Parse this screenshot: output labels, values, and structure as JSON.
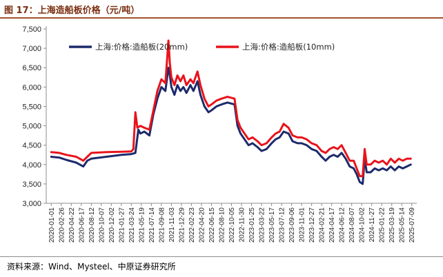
{
  "figure": {
    "title": "图 17：上海造船板价格（元/吨）",
    "source": "资料来源：Wind、Mysteel、中原证券研究所"
  },
  "colors": {
    "series1": "#1c2a6b",
    "series2": "#e8131b",
    "axis": "#8c8c8c",
    "title": "#7a2e10"
  },
  "chart_data": {
    "type": "line",
    "title": "",
    "xlabel": "",
    "ylabel": "元/吨",
    "ylim": [
      3000,
      7500
    ],
    "yticks": [
      3000,
      3500,
      4000,
      4500,
      5000,
      5500,
      6000,
      6500,
      7000,
      7500
    ],
    "ytick_labels": [
      "3,000",
      "3,500",
      "4,000",
      "4,500",
      "5,000",
      "5,500",
      "6,000",
      "6,500",
      "7,000",
      "7,500"
    ],
    "xtick_labels": [
      "2020-01-01",
      "2020-02-26",
      "2020-04-22",
      "2020-06-17",
      "2020-08-12",
      "2020-10-07",
      "2020-12-02",
      "2021-01-27",
      "2021-03-24",
      "2021-05-19",
      "2021-07-14",
      "2021-09-08",
      "2021-11-03",
      "2021-12-29",
      "2022-02-23",
      "2022-04-20",
      "2022-06-15",
      "2022-08-10",
      "2022-10-05",
      "2022-11-30",
      "2023-01-25",
      "2023-03-22",
      "2023-05-17",
      "2023-07-12",
      "2023-09-06",
      "2023-11-01",
      "2023-12-27",
      "2024-02-21",
      "2024-04-17",
      "2024-06-12",
      "2024-08-07",
      "2024-10-02",
      "2024-11-27",
      "2025-01-22",
      "2025-03-19",
      "2025-05-14",
      "2025-07-09"
    ],
    "legend_position": "top",
    "series": [
      {
        "name": "上海:价格:造船板(20mm)",
        "points": [
          [
            0,
            4200
          ],
          [
            0.8,
            4180
          ],
          [
            1.5,
            4120
          ],
          [
            2.5,
            4050
          ],
          [
            3.2,
            3950
          ],
          [
            3.6,
            4100
          ],
          [
            4.0,
            4150
          ],
          [
            5.5,
            4200
          ],
          [
            7.0,
            4250
          ],
          [
            8.0,
            4270
          ],
          [
            8.4,
            4300
          ],
          [
            8.7,
            4900
          ],
          [
            8.9,
            4800
          ],
          [
            9.3,
            4850
          ],
          [
            9.8,
            4750
          ],
          [
            10.2,
            5300
          ],
          [
            10.6,
            5700
          ],
          [
            11.0,
            6000
          ],
          [
            11.4,
            5900
          ],
          [
            11.7,
            6500
          ],
          [
            11.85,
            6300
          ],
          [
            12.0,
            6000
          ],
          [
            12.3,
            5800
          ],
          [
            12.6,
            6050
          ],
          [
            12.9,
            5900
          ],
          [
            13.2,
            6000
          ],
          [
            13.5,
            5850
          ],
          [
            13.9,
            6050
          ],
          [
            14.2,
            5900
          ],
          [
            14.6,
            6150
          ],
          [
            14.9,
            5800
          ],
          [
            15.3,
            5500
          ],
          [
            15.7,
            5350
          ],
          [
            16.0,
            5400
          ],
          [
            16.5,
            5500
          ],
          [
            17.0,
            5550
          ],
          [
            17.6,
            5600
          ],
          [
            18.3,
            5550
          ],
          [
            18.6,
            5000
          ],
          [
            18.9,
            4800
          ],
          [
            19.3,
            4650
          ],
          [
            19.7,
            4500
          ],
          [
            20.1,
            4550
          ],
          [
            20.6,
            4450
          ],
          [
            21.0,
            4350
          ],
          [
            21.5,
            4400
          ],
          [
            22.0,
            4550
          ],
          [
            22.4,
            4650
          ],
          [
            22.8,
            4700
          ],
          [
            23.2,
            4850
          ],
          [
            23.7,
            4800
          ],
          [
            24.1,
            4600
          ],
          [
            24.6,
            4550
          ],
          [
            25.0,
            4550
          ],
          [
            25.5,
            4500
          ],
          [
            26.0,
            4400
          ],
          [
            26.5,
            4350
          ],
          [
            27.0,
            4200
          ],
          [
            27.4,
            4100
          ],
          [
            27.8,
            4200
          ],
          [
            28.2,
            4250
          ],
          [
            28.6,
            4200
          ],
          [
            29.0,
            4300
          ],
          [
            29.4,
            4150
          ],
          [
            29.8,
            3950
          ],
          [
            30.2,
            3900
          ],
          [
            30.5,
            3750
          ],
          [
            30.8,
            3550
          ],
          [
            31.1,
            3500
          ],
          [
            31.3,
            4150
          ],
          [
            31.5,
            3800
          ],
          [
            31.9,
            3800
          ],
          [
            32.3,
            3900
          ],
          [
            32.7,
            3850
          ],
          [
            33.1,
            3900
          ],
          [
            33.5,
            3850
          ],
          [
            33.9,
            3950
          ],
          [
            34.3,
            3850
          ],
          [
            34.7,
            3950
          ],
          [
            35.1,
            3900
          ],
          [
            35.5,
            3950
          ],
          [
            35.9,
            4000
          ]
        ]
      },
      {
        "name": "上海:价格:造船板(10mm)",
        "points": [
          [
            0,
            4320
          ],
          [
            0.8,
            4300
          ],
          [
            1.5,
            4250
          ],
          [
            2.5,
            4200
          ],
          [
            3.2,
            4100
          ],
          [
            3.6,
            4200
          ],
          [
            4.0,
            4300
          ],
          [
            5.5,
            4320
          ],
          [
            7.0,
            4330
          ],
          [
            8.0,
            4340
          ],
          [
            8.2,
            4400
          ],
          [
            8.4,
            5350
          ],
          [
            8.6,
            4950
          ],
          [
            8.9,
            5000
          ],
          [
            9.3,
            4950
          ],
          [
            9.8,
            4900
          ],
          [
            10.2,
            5400
          ],
          [
            10.6,
            5900
          ],
          [
            11.0,
            6200
          ],
          [
            11.4,
            6100
          ],
          [
            11.7,
            7200
          ],
          [
            11.85,
            6600
          ],
          [
            12.0,
            6250
          ],
          [
            12.3,
            6050
          ],
          [
            12.6,
            6300
          ],
          [
            12.9,
            6150
          ],
          [
            13.2,
            6300
          ],
          [
            13.5,
            6050
          ],
          [
            13.9,
            6200
          ],
          [
            14.2,
            6100
          ],
          [
            14.6,
            6400
          ],
          [
            14.9,
            6050
          ],
          [
            15.3,
            5700
          ],
          [
            15.7,
            5500
          ],
          [
            16.0,
            5550
          ],
          [
            16.5,
            5650
          ],
          [
            17.0,
            5700
          ],
          [
            17.6,
            5750
          ],
          [
            18.3,
            5700
          ],
          [
            18.6,
            5150
          ],
          [
            18.9,
            4950
          ],
          [
            19.3,
            4800
          ],
          [
            19.7,
            4650
          ],
          [
            20.1,
            4700
          ],
          [
            20.6,
            4600
          ],
          [
            21.0,
            4500
          ],
          [
            21.5,
            4550
          ],
          [
            22.0,
            4700
          ],
          [
            22.4,
            4800
          ],
          [
            22.8,
            4850
          ],
          [
            23.2,
            5050
          ],
          [
            23.7,
            4950
          ],
          [
            24.1,
            4750
          ],
          [
            24.6,
            4700
          ],
          [
            25.0,
            4700
          ],
          [
            25.5,
            4650
          ],
          [
            26.0,
            4550
          ],
          [
            26.5,
            4500
          ],
          [
            27.0,
            4350
          ],
          [
            27.4,
            4300
          ],
          [
            27.8,
            4400
          ],
          [
            28.2,
            4450
          ],
          [
            28.6,
            4400
          ],
          [
            29.0,
            4500
          ],
          [
            29.4,
            4300
          ],
          [
            29.8,
            4100
          ],
          [
            30.2,
            4100
          ],
          [
            30.5,
            3900
          ],
          [
            30.8,
            3700
          ],
          [
            31.1,
            3700
          ],
          [
            31.3,
            4400
          ],
          [
            31.5,
            4000
          ],
          [
            31.9,
            4000
          ],
          [
            32.3,
            4100
          ],
          [
            32.7,
            4050
          ],
          [
            33.1,
            4100
          ],
          [
            33.5,
            4000
          ],
          [
            33.9,
            4150
          ],
          [
            34.3,
            4050
          ],
          [
            34.7,
            4150
          ],
          [
            35.1,
            4100
          ],
          [
            35.5,
            4150
          ],
          [
            35.9,
            4150
          ]
        ]
      }
    ]
  }
}
